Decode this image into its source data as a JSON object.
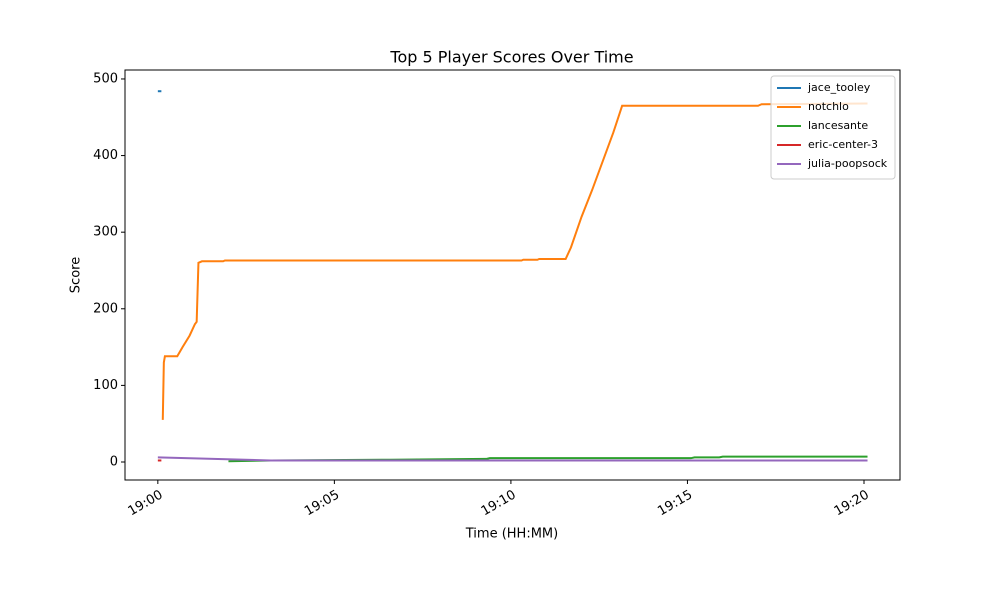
{
  "chart_data": {
    "type": "line",
    "title": "Top 5 Player Scores Over Time",
    "xlabel": "Time (HH:MM)",
    "ylabel": "Score",
    "xlim": [
      -0.93,
      21.02
    ],
    "ylim": [
      -23.5,
      511.7
    ],
    "xticks": [
      {
        "value": 0,
        "label": "19:00"
      },
      {
        "value": 5,
        "label": "19:05"
      },
      {
        "value": 10,
        "label": "19:10"
      },
      {
        "value": 15,
        "label": "19:15"
      },
      {
        "value": 20,
        "label": "19:20"
      }
    ],
    "yticks": [
      0,
      100,
      200,
      300,
      400,
      500
    ],
    "legend": "upper right",
    "series": [
      {
        "name": "jace_tooley",
        "color": "#1f77b4",
        "x": [
          0,
          0.1
        ],
        "values": [
          484,
          484
        ]
      },
      {
        "name": "notchlo",
        "color": "#ff7f0e",
        "x": [
          0.14,
          0.17,
          0.2,
          0.55,
          0.7,
          0.9,
          1.05,
          1.1,
          1.15,
          1.25,
          1.85,
          1.9,
          10.3,
          10.35,
          10.75,
          10.8,
          11.55,
          11.7,
          12.0,
          12.3,
          12.9,
          13.15,
          17.0,
          17.1,
          20.1
        ],
        "values": [
          55,
          130,
          138,
          138,
          150,
          165,
          180,
          183,
          260,
          262,
          262,
          263,
          263,
          264,
          264,
          265,
          265,
          280,
          320,
          355,
          430,
          465,
          465,
          467,
          468
        ]
      },
      {
        "name": "lancesante",
        "color": "#2ca02c",
        "x": [
          2.0,
          3.2,
          6.6,
          9.3,
          9.4,
          15.1,
          15.2,
          15.9,
          16.0,
          20.1
        ],
        "values": [
          1,
          2,
          3,
          4,
          5,
          5,
          6,
          6,
          7,
          7
        ]
      },
      {
        "name": "eric-center-3",
        "color": "#d62728",
        "x": [
          0,
          0.1
        ],
        "values": [
          2,
          2
        ]
      },
      {
        "name": "julia-poopsock",
        "color": "#9467bd",
        "x": [
          0,
          3.2,
          20.1
        ],
        "values": [
          6,
          2,
          2
        ]
      }
    ]
  }
}
